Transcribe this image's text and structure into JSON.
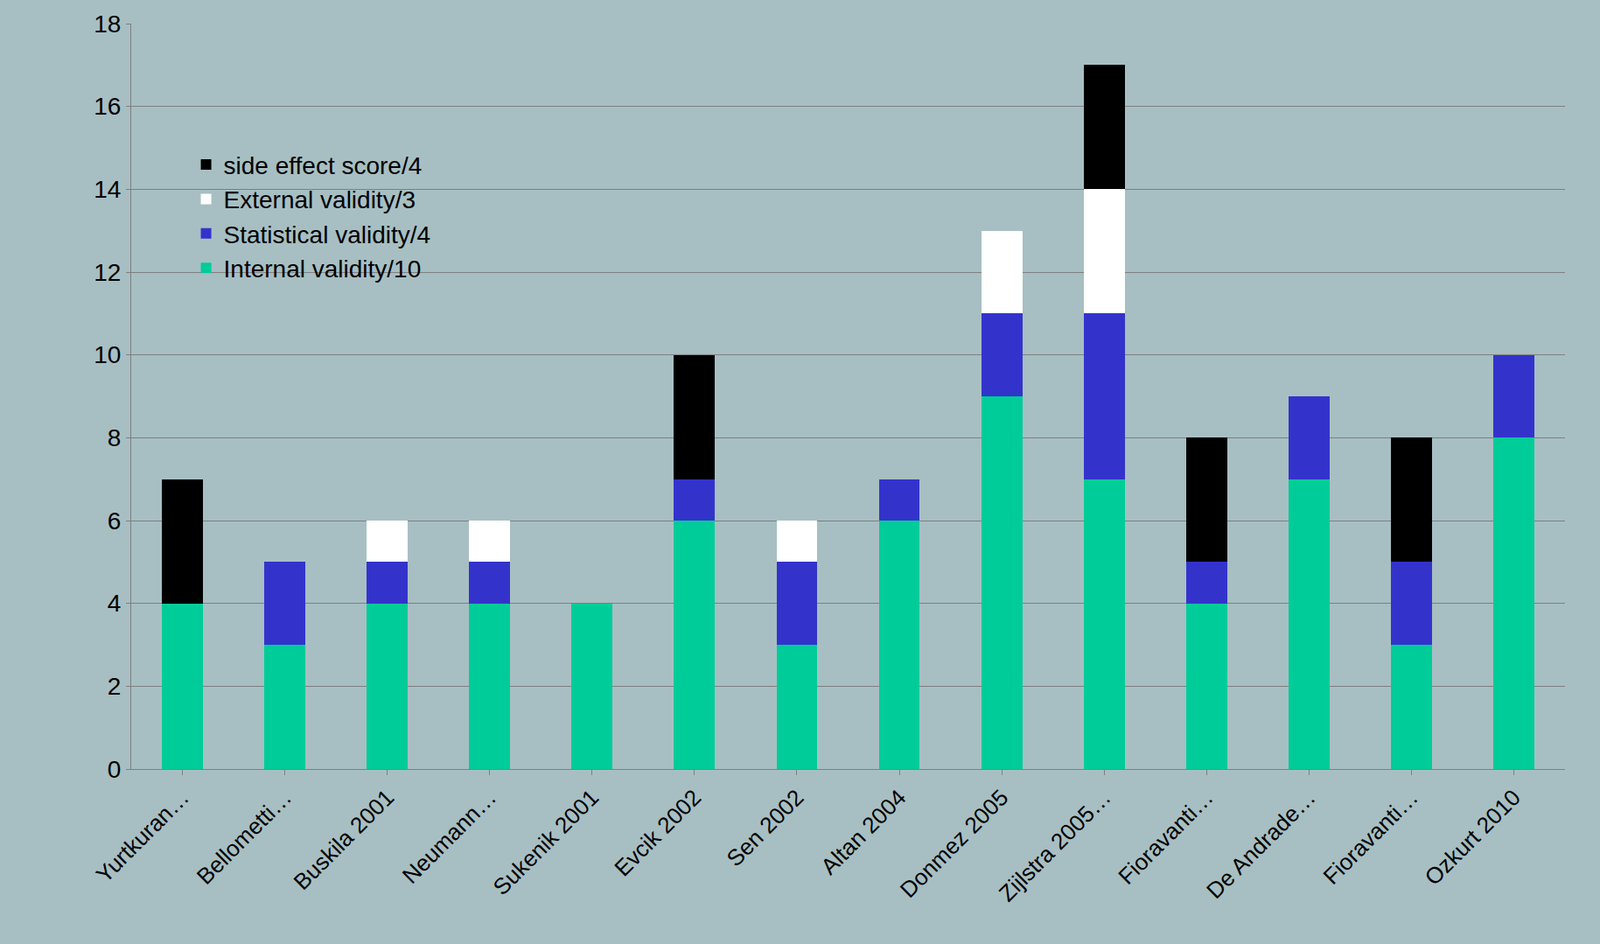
{
  "chart_data": {
    "type": "bar",
    "stacked": true,
    "categories": [
      "Yurtkuran…",
      "Bellometti…",
      "Buskila 2001",
      "Neumann…",
      "Sukenik 2001",
      "Evcik 2002",
      "Sen 2002",
      "Altan 2004",
      "Donmez 2005",
      "Zijlstra 2005…",
      "Fioravanti…",
      "De Andrade…",
      "Fioravanti…",
      "Ozkurt 2010"
    ],
    "series": [
      {
        "name": "Internal validity/10",
        "color": "#00CC99",
        "values": [
          4,
          3,
          4,
          4,
          4,
          6,
          3,
          6,
          9,
          7,
          4,
          7,
          3,
          8
        ]
      },
      {
        "name": "Statistical validity/4",
        "color": "#3333CC",
        "values": [
          0,
          2,
          1,
          1,
          0,
          1,
          2,
          1,
          2,
          4,
          1,
          2,
          2,
          2
        ]
      },
      {
        "name": "External validity/3",
        "color": "#FFFFFF",
        "values": [
          0,
          0,
          1,
          1,
          0,
          0,
          1,
          0,
          2,
          3,
          0,
          0,
          0,
          0
        ]
      },
      {
        "name": "side effect score/4",
        "color": "#000000",
        "values": [
          3,
          0,
          0,
          0,
          0,
          3,
          0,
          0,
          0,
          3,
          3,
          0,
          3,
          0
        ]
      }
    ],
    "ylim": [
      0,
      18
    ],
    "yticks": [
      0,
      2,
      4,
      6,
      8,
      10,
      12,
      14,
      16,
      18
    ],
    "grid": true,
    "legend": "top-left"
  }
}
